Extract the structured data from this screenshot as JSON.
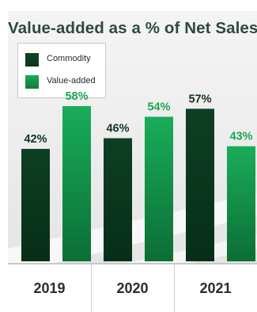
{
  "chart_data": {
    "type": "bar",
    "title": "Value-added as a % of Net Sales",
    "categories": [
      "2019",
      "2020",
      "2021"
    ],
    "series": [
      {
        "name": "Commodity",
        "values": [
          42,
          46,
          57
        ],
        "labels": [
          "42%",
          "46%",
          "57%"
        ],
        "color": "#0c3d22"
      },
      {
        "name": "Value-added",
        "values": [
          58,
          54,
          43
        ],
        "labels": [
          "58%",
          "54%",
          "43%"
        ],
        "color": "#16a452"
      }
    ],
    "ylim": [
      0,
      60
    ],
    "grid": false,
    "legend": "top-left"
  }
}
